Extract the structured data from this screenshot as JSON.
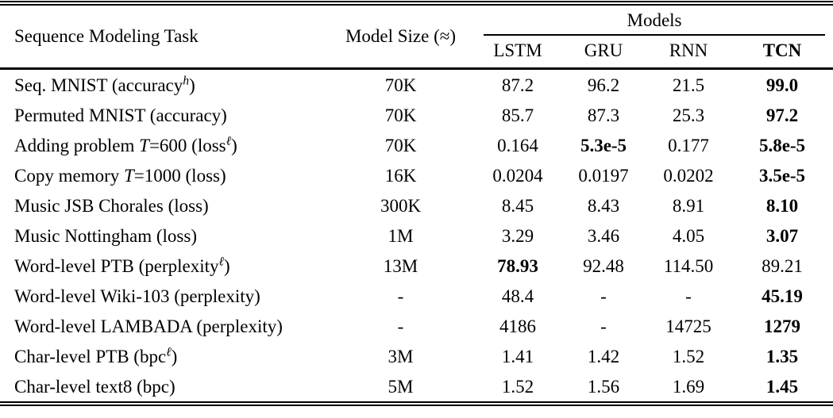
{
  "table": {
    "columns": {
      "task": "Sequence Modeling Task",
      "size": "Model Size (≈)",
      "models_group": "Models",
      "models": [
        "LSTM",
        "GRU",
        "RNN",
        "TCN"
      ]
    },
    "accent_colors": {
      "rule": "#000000",
      "text": "#000000",
      "background": "#ffffff"
    },
    "rows": [
      {
        "task": [
          {
            "text": "Seq. MNIST (accuracy"
          },
          {
            "text": "h",
            "style": "sup"
          },
          {
            "text": ")"
          }
        ],
        "size": "70K",
        "values": [
          {
            "text": "87.2"
          },
          {
            "text": "96.2"
          },
          {
            "text": "21.5"
          },
          {
            "text": "99.0",
            "bold": true
          }
        ]
      },
      {
        "task": [
          {
            "text": "Permuted MNIST (accuracy)"
          }
        ],
        "size": "70K",
        "values": [
          {
            "text": "85.7"
          },
          {
            "text": "87.3"
          },
          {
            "text": "25.3"
          },
          {
            "text": "97.2",
            "bold": true
          }
        ]
      },
      {
        "task": [
          {
            "text": "Adding problem "
          },
          {
            "text": "T",
            "style": "italic"
          },
          {
            "text": "=600 (loss"
          },
          {
            "text": "ℓ",
            "style": "sup"
          },
          {
            "text": ")"
          }
        ],
        "size": "70K",
        "values": [
          {
            "text": "0.164"
          },
          {
            "text": "5.3e-5",
            "bold": true
          },
          {
            "text": "0.177"
          },
          {
            "text": "5.8e-5",
            "bold": true
          }
        ]
      },
      {
        "task": [
          {
            "text": "Copy memory "
          },
          {
            "text": "T",
            "style": "italic"
          },
          {
            "text": "=1000 (loss)"
          }
        ],
        "size": "16K",
        "values": [
          {
            "text": "0.0204"
          },
          {
            "text": "0.0197"
          },
          {
            "text": "0.0202"
          },
          {
            "text": "3.5e-5",
            "bold": true
          }
        ]
      },
      {
        "task": [
          {
            "text": "Music JSB Chorales (loss)"
          }
        ],
        "size": "300K",
        "values": [
          {
            "text": "8.45"
          },
          {
            "text": "8.43"
          },
          {
            "text": "8.91"
          },
          {
            "text": "8.10",
            "bold": true
          }
        ]
      },
      {
        "task": [
          {
            "text": "Music Nottingham (loss)"
          }
        ],
        "size": "1M",
        "values": [
          {
            "text": "3.29"
          },
          {
            "text": "3.46"
          },
          {
            "text": "4.05"
          },
          {
            "text": "3.07",
            "bold": true
          }
        ]
      },
      {
        "task": [
          {
            "text": "Word-level PTB (perplexity"
          },
          {
            "text": "ℓ",
            "style": "sup"
          },
          {
            "text": ")"
          }
        ],
        "size": "13M",
        "values": [
          {
            "text": "78.93",
            "bold": true
          },
          {
            "text": "92.48"
          },
          {
            "text": "114.50"
          },
          {
            "text": "89.21"
          }
        ]
      },
      {
        "task": [
          {
            "text": "Word-level Wiki-103 (perplexity)"
          }
        ],
        "size": "-",
        "values": [
          {
            "text": "48.4"
          },
          {
            "text": "-"
          },
          {
            "text": "-"
          },
          {
            "text": "45.19",
            "bold": true
          }
        ]
      },
      {
        "task": [
          {
            "text": "Word-level LAMBADA (perplexity)"
          }
        ],
        "size": "-",
        "values": [
          {
            "text": "4186"
          },
          {
            "text": "-"
          },
          {
            "text": "14725"
          },
          {
            "text": "1279",
            "bold": true
          }
        ]
      },
      {
        "task": [
          {
            "text": "Char-level PTB (bpc"
          },
          {
            "text": "ℓ",
            "style": "sup"
          },
          {
            "text": ")"
          }
        ],
        "size": "3M",
        "values": [
          {
            "text": "1.41"
          },
          {
            "text": "1.42"
          },
          {
            "text": "1.52"
          },
          {
            "text": "1.35",
            "bold": true
          }
        ]
      },
      {
        "task": [
          {
            "text": "Char-level text8 (bpc)"
          }
        ],
        "size": "5M",
        "values": [
          {
            "text": "1.52"
          },
          {
            "text": "1.56"
          },
          {
            "text": "1.69"
          },
          {
            "text": "1.45",
            "bold": true
          }
        ]
      }
    ]
  }
}
